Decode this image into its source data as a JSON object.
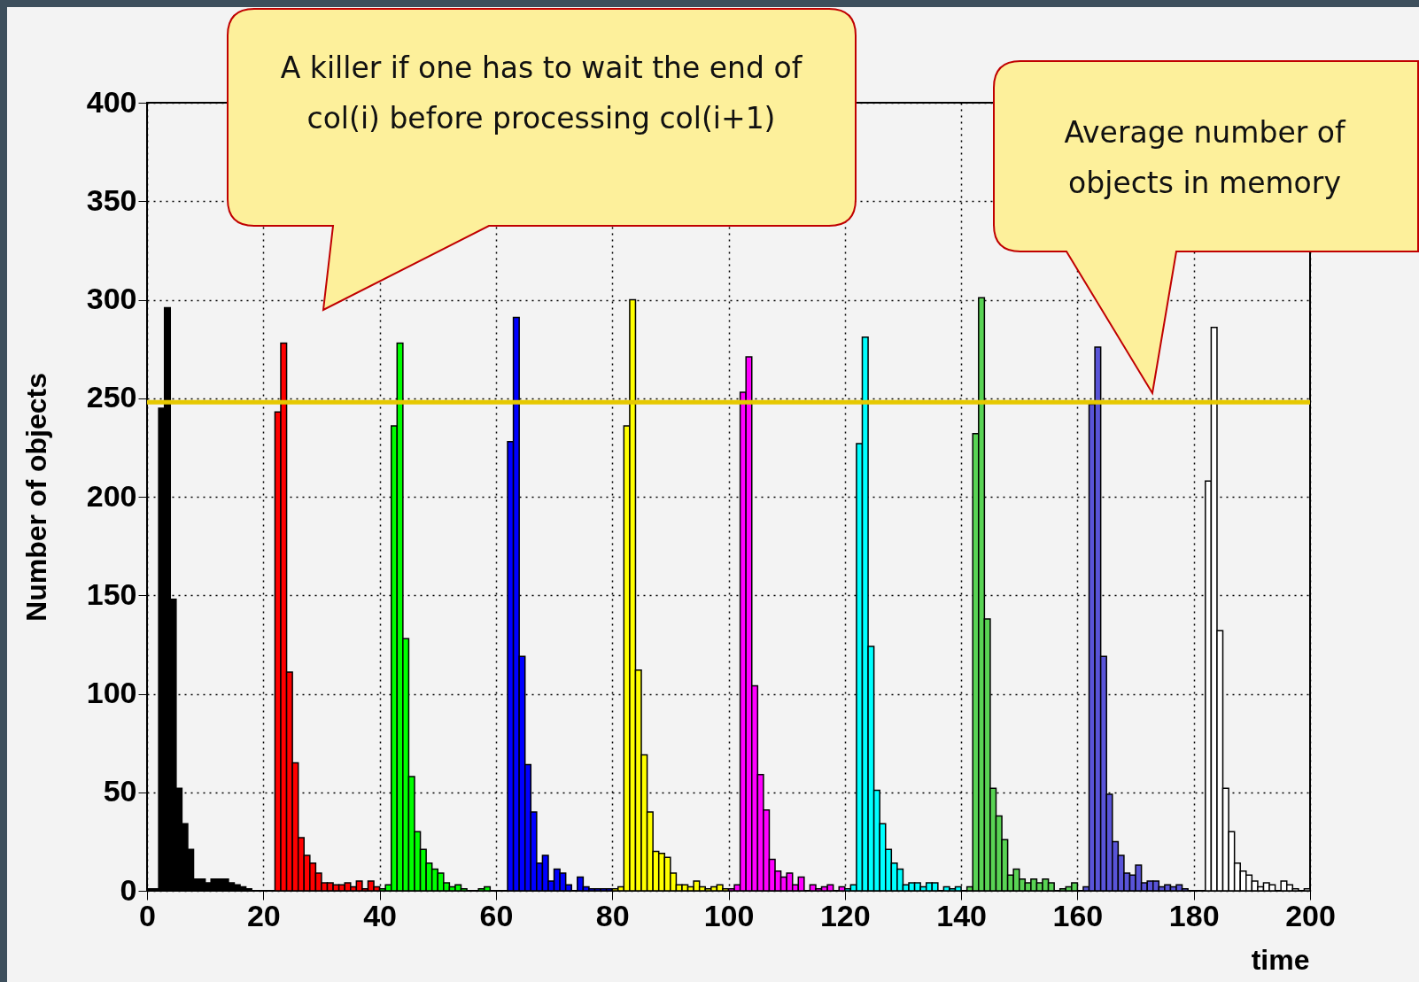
{
  "chart_data": {
    "type": "histogram",
    "xlabel": "time",
    "ylabel": "Number of objects",
    "xlim": [
      0,
      200
    ],
    "ylim": [
      0,
      400
    ],
    "xticks": [
      0,
      20,
      40,
      60,
      80,
      100,
      120,
      140,
      160,
      180,
      200
    ],
    "yticks": [
      0,
      50,
      100,
      150,
      200,
      250,
      300,
      350,
      400
    ],
    "grid": true,
    "annotations": [
      "A killer if one has to wait the end of col(i) before processing col(i+1)",
      "Average number of objects in memory"
    ],
    "ref_lines": [
      {
        "axis": "y",
        "value": 248,
        "color": "#e6c800"
      }
    ],
    "bins": [
      0,
      1,
      2,
      3,
      4,
      5,
      6,
      7,
      8,
      9,
      10,
      11,
      12,
      13,
      14,
      15,
      16,
      17,
      18,
      19,
      20,
      21,
      22,
      23,
      24,
      25,
      26,
      27,
      28,
      29,
      30,
      31,
      32,
      33,
      34,
      35,
      36,
      37,
      38,
      39,
      40,
      41,
      42,
      43,
      44,
      45,
      46,
      47,
      48,
      49,
      50,
      51,
      52,
      53,
      54,
      55,
      56,
      57,
      58,
      59,
      60,
      61,
      62,
      63,
      64,
      65,
      66,
      67,
      68,
      69,
      70,
      71,
      72,
      73,
      74,
      75,
      76,
      77,
      78,
      79,
      80,
      81,
      82,
      83,
      84,
      85,
      86,
      87,
      88,
      89,
      90,
      91,
      92,
      93,
      94,
      95,
      96,
      97,
      98,
      99,
      100,
      101,
      102,
      103,
      104,
      105,
      106,
      107,
      108,
      109,
      110,
      111,
      112,
      113,
      114,
      115,
      116,
      117,
      118,
      119,
      120,
      121,
      122,
      123,
      124,
      125,
      126,
      127,
      128,
      129,
      130,
      131,
      132,
      133,
      134,
      135,
      136,
      137,
      138,
      139,
      140,
      141,
      142,
      143,
      144,
      145,
      146,
      147,
      148,
      149,
      150,
      151,
      152,
      153,
      154,
      155,
      156,
      157,
      158,
      159,
      160,
      161,
      162,
      163,
      164,
      165,
      166,
      167,
      168,
      169,
      170,
      171,
      172,
      173,
      174,
      175,
      176,
      177,
      178,
      179,
      180,
      181,
      182,
      183,
      184,
      185,
      186,
      187,
      188,
      189,
      190,
      191,
      192,
      193,
      194,
      195,
      196,
      197,
      198,
      199,
      200
    ],
    "series": [
      {
        "color": "#000000",
        "values": [
          1,
          1,
          245,
          296,
          148,
          52,
          34,
          21,
          6,
          6,
          4,
          6,
          6,
          6,
          4,
          3,
          2,
          1,
          0,
          0,
          null,
          null,
          null,
          null,
          null,
          null,
          null,
          null,
          null,
          null,
          null,
          null,
          null,
          null,
          null,
          null,
          null,
          null,
          null,
          null,
          null,
          null,
          null,
          null,
          null,
          null,
          null,
          null,
          null,
          null,
          null,
          null,
          null,
          null,
          null,
          null,
          null,
          null,
          null,
          null,
          null,
          null,
          null,
          null,
          null,
          null,
          null,
          null,
          null,
          null,
          null,
          null,
          null,
          null,
          null,
          null,
          null,
          null,
          null,
          null,
          null,
          null,
          null,
          null,
          null,
          null,
          null,
          null,
          null,
          null,
          null,
          null,
          null,
          null,
          null,
          null,
          null,
          null,
          null,
          null,
          null,
          null,
          null,
          null,
          null,
          null,
          null,
          null,
          null,
          null,
          null,
          null,
          null,
          null,
          null,
          null,
          null,
          null,
          null,
          null,
          null,
          null,
          null,
          null,
          null,
          null,
          null,
          null,
          null,
          null,
          null,
          null,
          null,
          null,
          null,
          null,
          null,
          null,
          null,
          null,
          null,
          null,
          null,
          null,
          null,
          null,
          null,
          null,
          null,
          null,
          null,
          null,
          null,
          null,
          null,
          null,
          null,
          null,
          null,
          null,
          null,
          null,
          null,
          null,
          null,
          null,
          null,
          null,
          null,
          null,
          null,
          null,
          null,
          null,
          null,
          null,
          null,
          null,
          null,
          null,
          null,
          null,
          null,
          null,
          null,
          null,
          null,
          null,
          null,
          null,
          null,
          null,
          null,
          null,
          null,
          null,
          null,
          null,
          null,
          null
        ]
      },
      {
        "color": "#ff0000",
        "values": [
          null,
          null,
          null,
          null,
          null,
          null,
          null,
          null,
          null,
          null,
          null,
          null,
          null,
          null,
          null,
          null,
          null,
          null,
          null,
          null,
          0,
          0,
          243,
          278,
          111,
          65,
          27,
          18,
          14,
          9,
          4,
          4,
          3,
          3,
          4,
          2,
          5,
          1,
          5,
          2,
          null,
          null,
          null,
          null,
          null,
          null,
          null,
          null,
          null,
          null,
          null,
          null,
          null,
          null,
          null,
          null,
          null,
          null,
          null,
          null,
          null,
          null,
          null,
          null,
          null,
          null,
          null,
          null,
          null,
          null,
          null,
          null,
          null,
          null,
          null,
          null,
          null,
          null,
          null,
          null,
          null,
          null,
          null,
          null,
          null,
          null,
          null,
          null,
          null,
          null,
          null,
          null,
          null,
          null,
          null,
          null,
          null,
          null,
          null,
          null,
          null,
          null,
          null,
          null,
          null,
          null,
          null,
          null,
          null,
          null,
          null,
          null,
          null,
          null,
          null,
          null,
          null,
          null,
          null,
          null,
          null,
          null,
          null,
          null,
          null,
          null,
          null,
          null,
          null,
          null,
          null,
          null,
          null,
          null,
          null,
          null,
          null,
          null,
          null,
          null,
          null,
          null,
          null,
          null,
          null,
          null,
          null,
          null,
          null,
          null,
          null,
          null,
          null,
          null,
          null,
          null,
          null,
          null,
          null,
          null,
          null,
          null,
          null,
          null,
          null,
          null,
          null,
          null,
          null,
          null,
          null,
          null,
          null,
          null,
          null,
          null,
          null,
          null,
          null,
          null,
          null,
          null,
          null,
          null,
          null,
          null,
          null,
          null,
          null,
          null,
          null,
          null,
          null,
          null,
          null,
          null,
          null,
          null,
          null,
          null
        ]
      },
      {
        "color": "#00ff00",
        "values": [
          null,
          null,
          null,
          null,
          null,
          null,
          null,
          null,
          null,
          null,
          null,
          null,
          null,
          null,
          null,
          null,
          null,
          null,
          null,
          null,
          null,
          null,
          null,
          null,
          null,
          null,
          null,
          null,
          null,
          null,
          null,
          null,
          null,
          null,
          null,
          null,
          null,
          null,
          null,
          null,
          1,
          3,
          236,
          278,
          128,
          58,
          30,
          21,
          14,
          11,
          9,
          4,
          2,
          3,
          1,
          0,
          0,
          1,
          2,
          0,
          null,
          null,
          null,
          null,
          null,
          null,
          null,
          null,
          null,
          null,
          null,
          null,
          null,
          null,
          null,
          null,
          null,
          null,
          null,
          null,
          null,
          null,
          null,
          null,
          null,
          null,
          null,
          null,
          null,
          null,
          null,
          null,
          null,
          null,
          null,
          null,
          null,
          null,
          null,
          null,
          null,
          null,
          null,
          null,
          null,
          null,
          null,
          null,
          null,
          null,
          null,
          null,
          null,
          null,
          null,
          null,
          null,
          null,
          null,
          null,
          null,
          null,
          null,
          null,
          null,
          null,
          null,
          null,
          null,
          null,
          null,
          null,
          null,
          null,
          null,
          null,
          null,
          null,
          null,
          null,
          null,
          null,
          null,
          null,
          null,
          null,
          null,
          null,
          null,
          null,
          null,
          null,
          null,
          null,
          null,
          null,
          null,
          null,
          null,
          null,
          null,
          null,
          null,
          null,
          null,
          null,
          null,
          null,
          null,
          null,
          null,
          null,
          null,
          null,
          null,
          null,
          null,
          null,
          null,
          null,
          null,
          null,
          null,
          null,
          null,
          null,
          null,
          null,
          null,
          null,
          null,
          null,
          null,
          null,
          null,
          null,
          null,
          null,
          null,
          null
        ]
      },
      {
        "color": "#0000ff",
        "values": [
          null,
          null,
          null,
          null,
          null,
          null,
          null,
          null,
          null,
          null,
          null,
          null,
          null,
          null,
          null,
          null,
          null,
          null,
          null,
          null,
          null,
          null,
          null,
          null,
          null,
          null,
          null,
          null,
          null,
          null,
          null,
          null,
          null,
          null,
          null,
          null,
          null,
          null,
          null,
          null,
          null,
          null,
          null,
          null,
          null,
          null,
          null,
          null,
          null,
          null,
          null,
          null,
          null,
          null,
          null,
          null,
          null,
          null,
          null,
          null,
          0,
          0,
          228,
          291,
          119,
          64,
          40,
          14,
          18,
          5,
          11,
          9,
          3,
          0,
          7,
          2,
          1,
          1,
          1,
          1,
          null,
          null,
          null,
          null,
          null,
          null,
          null,
          null,
          null,
          null,
          null,
          null,
          null,
          null,
          null,
          null,
          null,
          null,
          null,
          null,
          null,
          null,
          null,
          null,
          null,
          null,
          null,
          null,
          null,
          null,
          null,
          null,
          null,
          null,
          null,
          null,
          null,
          null,
          null,
          null,
          null,
          null,
          null,
          null,
          null,
          null,
          null,
          null,
          null,
          null,
          null,
          null,
          null,
          null,
          null,
          null,
          null,
          null,
          null,
          null,
          null,
          null,
          null,
          null,
          null,
          null,
          null,
          null,
          null,
          null,
          null,
          null,
          null,
          null,
          null,
          null,
          null,
          null,
          null,
          null,
          null,
          null,
          null,
          null,
          null,
          null,
          null,
          null,
          null,
          null,
          null,
          null,
          null,
          null,
          null,
          null,
          null,
          null,
          null,
          null,
          null,
          null,
          null,
          null,
          null,
          null,
          null,
          null,
          null,
          null,
          null,
          null,
          null,
          null,
          null,
          null,
          null,
          null,
          null,
          null
        ]
      },
      {
        "color": "#ffff00",
        "values": [
          null,
          null,
          null,
          null,
          null,
          null,
          null,
          null,
          null,
          null,
          null,
          null,
          null,
          null,
          null,
          null,
          null,
          null,
          null,
          null,
          null,
          null,
          null,
          null,
          null,
          null,
          null,
          null,
          null,
          null,
          null,
          null,
          null,
          null,
          null,
          null,
          null,
          null,
          null,
          null,
          null,
          null,
          null,
          null,
          null,
          null,
          null,
          null,
          null,
          null,
          null,
          null,
          null,
          null,
          null,
          null,
          null,
          null,
          null,
          null,
          null,
          null,
          null,
          null,
          null,
          null,
          null,
          null,
          null,
          null,
          null,
          null,
          null,
          null,
          null,
          null,
          null,
          null,
          null,
          null,
          1,
          2,
          236,
          300,
          112,
          69,
          40,
          20,
          19,
          17,
          9,
          3,
          3,
          2,
          5,
          2,
          1,
          2,
          3,
          1,
          null,
          null,
          null,
          null,
          null,
          null,
          null,
          null,
          null,
          null,
          null,
          null,
          null,
          null,
          null,
          null,
          null,
          null,
          null,
          null,
          null,
          null,
          null,
          null,
          null,
          null,
          null,
          null,
          null,
          null,
          null,
          null,
          null,
          null,
          null,
          null,
          null,
          null,
          null,
          null,
          null,
          null,
          null,
          null,
          null,
          null,
          null,
          null,
          null,
          null,
          null,
          null,
          null,
          null,
          null,
          null,
          null,
          null,
          null,
          null,
          null,
          null,
          null,
          null,
          null,
          null,
          null,
          null,
          null,
          null,
          null,
          null,
          null,
          null,
          null,
          null,
          null,
          null,
          null,
          null,
          null,
          null,
          null,
          null,
          null,
          null,
          null,
          null,
          null,
          null,
          null,
          null,
          null,
          null,
          null,
          null,
          null,
          null,
          null,
          null
        ]
      },
      {
        "color": "#ff00ff",
        "values": [
          null,
          null,
          null,
          null,
          null,
          null,
          null,
          null,
          null,
          null,
          null,
          null,
          null,
          null,
          null,
          null,
          null,
          null,
          null,
          null,
          null,
          null,
          null,
          null,
          null,
          null,
          null,
          null,
          null,
          null,
          null,
          null,
          null,
          null,
          null,
          null,
          null,
          null,
          null,
          null,
          null,
          null,
          null,
          null,
          null,
          null,
          null,
          null,
          null,
          null,
          null,
          null,
          null,
          null,
          null,
          null,
          null,
          null,
          null,
          null,
          null,
          null,
          null,
          null,
          null,
          null,
          null,
          null,
          null,
          null,
          null,
          null,
          null,
          null,
          null,
          null,
          null,
          null,
          null,
          null,
          null,
          null,
          null,
          null,
          null,
          null,
          null,
          null,
          null,
          null,
          null,
          null,
          null,
          null,
          null,
          null,
          null,
          null,
          null,
          null,
          1,
          3,
          253,
          271,
          104,
          59,
          41,
          16,
          10,
          7,
          9,
          3,
          7,
          0,
          3,
          1,
          2,
          3,
          0,
          2,
          null,
          null,
          null,
          null,
          null,
          null,
          null,
          null,
          null,
          null,
          null,
          null,
          null,
          null,
          null,
          null,
          null,
          null,
          null,
          null,
          null,
          null,
          null,
          null,
          null,
          null,
          null,
          null,
          null,
          null,
          null,
          null,
          null,
          null,
          null,
          null,
          null,
          null,
          null,
          null,
          null,
          null,
          null,
          null,
          null,
          null,
          null,
          null,
          null,
          null,
          null,
          null,
          null,
          null,
          null,
          null,
          null,
          null,
          null,
          null,
          null,
          null,
          null,
          null,
          null,
          null,
          null,
          null,
          null,
          null,
          null,
          null,
          null,
          null,
          null,
          null,
          null,
          null,
          null,
          null
        ]
      },
      {
        "color": "#00ffff",
        "values": [
          null,
          null,
          null,
          null,
          null,
          null,
          null,
          null,
          null,
          null,
          null,
          null,
          null,
          null,
          null,
          null,
          null,
          null,
          null,
          null,
          null,
          null,
          null,
          null,
          null,
          null,
          null,
          null,
          null,
          null,
          null,
          null,
          null,
          null,
          null,
          null,
          null,
          null,
          null,
          null,
          null,
          null,
          null,
          null,
          null,
          null,
          null,
          null,
          null,
          null,
          null,
          null,
          null,
          null,
          null,
          null,
          null,
          null,
          null,
          null,
          null,
          null,
          null,
          null,
          null,
          null,
          null,
          null,
          null,
          null,
          null,
          null,
          null,
          null,
          null,
          null,
          null,
          null,
          null,
          null,
          null,
          null,
          null,
          null,
          null,
          null,
          null,
          null,
          null,
          null,
          null,
          null,
          null,
          null,
          null,
          null,
          null,
          null,
          null,
          null,
          null,
          null,
          null,
          null,
          null,
          null,
          null,
          null,
          null,
          null,
          null,
          null,
          null,
          null,
          null,
          null,
          null,
          null,
          null,
          null,
          1,
          3,
          227,
          281,
          124,
          51,
          34,
          21,
          14,
          11,
          3,
          4,
          4,
          2,
          4,
          4,
          0,
          2,
          1,
          2,
          null,
          null,
          null,
          null,
          null,
          null,
          null,
          null,
          null,
          null,
          null,
          null,
          null,
          null,
          null,
          null,
          null,
          null,
          null,
          null,
          null,
          null,
          null,
          null,
          null,
          null,
          null,
          null,
          null,
          null,
          null,
          null,
          null,
          null,
          null,
          null,
          null,
          null,
          null,
          null,
          null,
          null,
          null,
          null,
          null,
          null,
          null,
          null,
          null,
          null,
          null,
          null,
          null,
          null,
          null,
          null,
          null,
          null,
          null,
          null
        ]
      },
      {
        "color": "#59d354",
        "values": [
          null,
          null,
          null,
          null,
          null,
          null,
          null,
          null,
          null,
          null,
          null,
          null,
          null,
          null,
          null,
          null,
          null,
          null,
          null,
          null,
          null,
          null,
          null,
          null,
          null,
          null,
          null,
          null,
          null,
          null,
          null,
          null,
          null,
          null,
          null,
          null,
          null,
          null,
          null,
          null,
          null,
          null,
          null,
          null,
          null,
          null,
          null,
          null,
          null,
          null,
          null,
          null,
          null,
          null,
          null,
          null,
          null,
          null,
          null,
          null,
          null,
          null,
          null,
          null,
          null,
          null,
          null,
          null,
          null,
          null,
          null,
          null,
          null,
          null,
          null,
          null,
          null,
          null,
          null,
          null,
          null,
          null,
          null,
          null,
          null,
          null,
          null,
          null,
          null,
          null,
          null,
          null,
          null,
          null,
          null,
          null,
          null,
          null,
          null,
          null,
          null,
          null,
          null,
          null,
          null,
          null,
          null,
          null,
          null,
          null,
          null,
          null,
          null,
          null,
          null,
          null,
          null,
          null,
          null,
          null,
          null,
          null,
          null,
          null,
          null,
          null,
          null,
          null,
          null,
          null,
          null,
          null,
          null,
          null,
          null,
          null,
          null,
          null,
          null,
          null,
          0,
          2,
          232,
          301,
          138,
          52,
          38,
          26,
          8,
          11,
          6,
          4,
          6,
          4,
          6,
          4,
          0,
          1,
          2,
          4,
          null,
          null,
          null,
          null,
          null,
          null,
          null,
          null,
          null,
          null,
          null,
          null,
          null,
          null,
          null,
          null,
          null,
          null,
          null,
          null,
          null,
          null,
          null,
          null,
          null,
          null,
          null,
          null,
          null,
          null,
          null,
          null,
          null,
          null,
          null,
          null,
          null,
          null,
          null,
          null
        ]
      },
      {
        "color": "#5954d8",
        "values": [
          null,
          null,
          null,
          null,
          null,
          null,
          null,
          null,
          null,
          null,
          null,
          null,
          null,
          null,
          null,
          null,
          null,
          null,
          null,
          null,
          null,
          null,
          null,
          null,
          null,
          null,
          null,
          null,
          null,
          null,
          null,
          null,
          null,
          null,
          null,
          null,
          null,
          null,
          null,
          null,
          null,
          null,
          null,
          null,
          null,
          null,
          null,
          null,
          null,
          null,
          null,
          null,
          null,
          null,
          null,
          null,
          null,
          null,
          null,
          null,
          null,
          null,
          null,
          null,
          null,
          null,
          null,
          null,
          null,
          null,
          null,
          null,
          null,
          null,
          null,
          null,
          null,
          null,
          null,
          null,
          null,
          null,
          null,
          null,
          null,
          null,
          null,
          null,
          null,
          null,
          null,
          null,
          null,
          null,
          null,
          null,
          null,
          null,
          null,
          null,
          null,
          null,
          null,
          null,
          null,
          null,
          null,
          null,
          null,
          null,
          null,
          null,
          null,
          null,
          null,
          null,
          null,
          null,
          null,
          null,
          null,
          null,
          null,
          null,
          null,
          null,
          null,
          null,
          null,
          null,
          null,
          null,
          null,
          null,
          null,
          null,
          null,
          null,
          null,
          null,
          null,
          null,
          null,
          null,
          null,
          null,
          null,
          null,
          null,
          null,
          null,
          null,
          null,
          null,
          null,
          null,
          null,
          null,
          null,
          null,
          0,
          2,
          247,
          276,
          119,
          49,
          25,
          18,
          9,
          8,
          13,
          4,
          5,
          5,
          2,
          3,
          2,
          3,
          1,
          0,
          null,
          null,
          null,
          null,
          null,
          null,
          null,
          null,
          null,
          null,
          null,
          null,
          null,
          null,
          null,
          null,
          null,
          null,
          null,
          null
        ]
      },
      {
        "color": "#ffffff",
        "values": [
          null,
          null,
          null,
          null,
          null,
          null,
          null,
          null,
          null,
          null,
          null,
          null,
          null,
          null,
          null,
          null,
          null,
          null,
          null,
          null,
          null,
          null,
          null,
          null,
          null,
          null,
          null,
          null,
          null,
          null,
          null,
          null,
          null,
          null,
          null,
          null,
          null,
          null,
          null,
          null,
          null,
          null,
          null,
          null,
          null,
          null,
          null,
          null,
          null,
          null,
          null,
          null,
          null,
          null,
          null,
          null,
          null,
          null,
          null,
          null,
          null,
          null,
          null,
          null,
          null,
          null,
          null,
          null,
          null,
          null,
          null,
          null,
          null,
          null,
          null,
          null,
          null,
          null,
          null,
          null,
          null,
          null,
          null,
          null,
          null,
          null,
          null,
          null,
          null,
          null,
          null,
          null,
          null,
          null,
          null,
          null,
          null,
          null,
          null,
          null,
          null,
          null,
          null,
          null,
          null,
          null,
          null,
          null,
          null,
          null,
          null,
          null,
          null,
          null,
          null,
          null,
          null,
          null,
          null,
          null,
          null,
          null,
          null,
          null,
          null,
          null,
          null,
          null,
          null,
          null,
          null,
          null,
          null,
          null,
          null,
          null,
          null,
          null,
          null,
          null,
          null,
          null,
          null,
          null,
          null,
          null,
          null,
          null,
          null,
          null,
          null,
          null,
          null,
          null,
          null,
          null,
          null,
          null,
          null,
          null,
          null,
          null,
          null,
          null,
          null,
          null,
          null,
          null,
          null,
          null,
          null,
          null,
          null,
          null,
          null,
          null,
          null,
          null,
          null,
          null,
          0,
          0,
          208,
          286,
          132,
          52,
          30,
          14,
          10,
          8,
          5,
          2,
          4,
          3,
          0,
          5,
          3,
          1,
          0,
          1
        ]
      }
    ]
  }
}
